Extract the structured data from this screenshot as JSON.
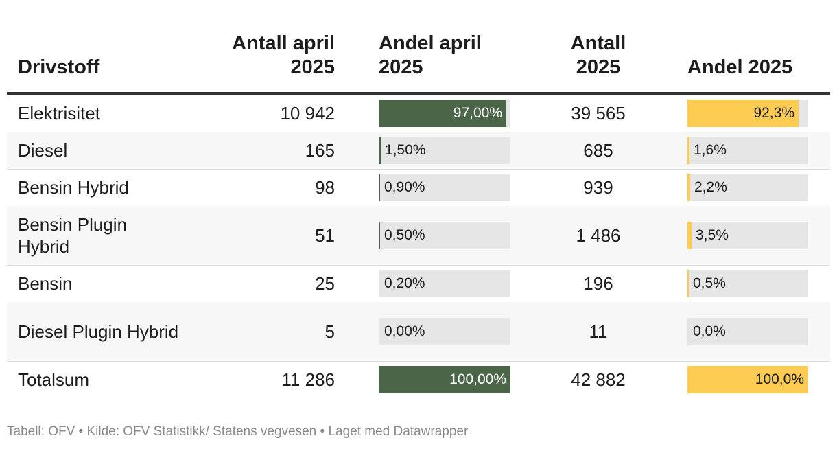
{
  "chart_data": {
    "type": "table",
    "columns": [
      "Drivstoff",
      "Antall april 2025",
      "Andel april 2025",
      "Antall 2025",
      "Andel 2025"
    ],
    "header_lines": [
      [
        "Drivstoff"
      ],
      [
        "Antall april",
        "2025"
      ],
      [
        "Andel april",
        "2025"
      ],
      [
        "Antall",
        "2025"
      ],
      [
        "Andel 2025"
      ]
    ],
    "rows": [
      {
        "drivstoff": "Elektrisitet",
        "antall_april": "10 942",
        "andel_april": 97.0,
        "andel_april_label": "97,00%",
        "antall_2025": "39 565",
        "andel_2025": 92.3,
        "andel_2025_label": "92,3%"
      },
      {
        "drivstoff": "Diesel",
        "antall_april": "165",
        "andel_april": 1.5,
        "andel_april_label": "1,50%",
        "antall_2025": "685",
        "andel_2025": 1.6,
        "andel_2025_label": "1,6%"
      },
      {
        "drivstoff": "Bensin Hybrid",
        "antall_april": "98",
        "andel_april": 0.9,
        "andel_april_label": "0,90%",
        "antall_2025": "939",
        "andel_2025": 2.2,
        "andel_2025_label": "2,2%"
      },
      {
        "drivstoff": "Bensin Plugin Hybrid",
        "antall_april": "51",
        "andel_april": 0.5,
        "andel_april_label": "0,50%",
        "antall_2025": "1 486",
        "andel_2025": 3.5,
        "andel_2025_label": "3,5%"
      },
      {
        "drivstoff": "Bensin",
        "antall_april": "25",
        "andel_april": 0.2,
        "andel_april_label": "0,20%",
        "antall_2025": "196",
        "andel_2025": 0.5,
        "andel_2025_label": "0,5%"
      },
      {
        "drivstoff": "Diesel Plugin Hybrid",
        "antall_april": "5",
        "andel_april": 0.0,
        "andel_april_label": "0,00%",
        "antall_2025": "11",
        "andel_2025": 0.0,
        "andel_2025_label": "0,0%"
      },
      {
        "drivstoff": "Totalsum",
        "antall_april": "11 286",
        "andel_april": 100.0,
        "andel_april_label": "100,00%",
        "antall_2025": "42 882",
        "andel_2025": 100.0,
        "andel_2025_label": "100,0%"
      }
    ],
    "bar_max": 100,
    "colors": {
      "andel_april": "#4b6549",
      "andel_2025": "#fccb52",
      "track": "#e6e6e6"
    }
  },
  "footer": "Tabell: OFV • Kilde: OFV Statistikk/ Statens vegvesen • Laget med Datawrapper"
}
